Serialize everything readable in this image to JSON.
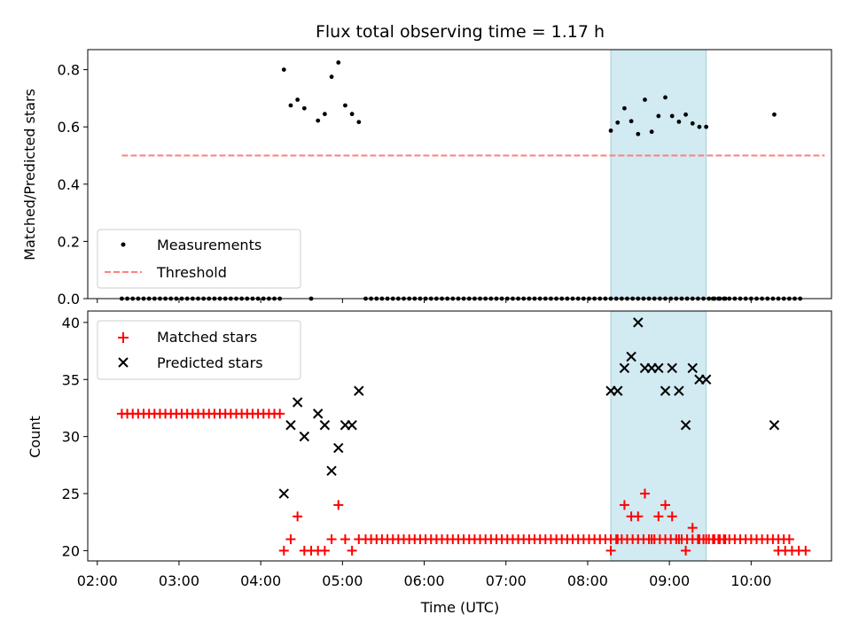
{
  "title": "Flux total observing time = 1.17 h",
  "colors": {
    "measurement": "#000000",
    "threshold": "#ff7f7f",
    "matched": "#ff0000",
    "predicted": "#000000",
    "highlight": "#add8e6"
  },
  "chart_data": [
    {
      "type": "scatter",
      "ylabel": "Matched/Predicted stars",
      "xlabel": "",
      "xlim": [
        "01:53",
        "10:59"
      ],
      "ylim": [
        0,
        0.87
      ],
      "x_ticks": [
        "02:00",
        "03:00",
        "04:00",
        "05:00",
        "06:00",
        "07:00",
        "08:00",
        "09:00",
        "10:00"
      ],
      "y_ticks": [
        "0.0",
        "0.2",
        "0.4",
        "0.6",
        "0.8"
      ],
      "highlight_span": [
        "08:17",
        "09:27"
      ],
      "legend": {
        "placement": "lower-left",
        "entries": [
          "Measurements",
          "Threshold"
        ]
      },
      "threshold": {
        "name": "Threshold",
        "y": 0.5,
        "x_range": [
          "02:18",
          "10:54"
        ]
      },
      "series": [
        {
          "name": "Measurements",
          "zero_points": {
            "groups": [
              {
                "start": "02:18",
                "step_min": 4,
                "count": 30
              },
              {
                "start": "04:37",
                "step_min": 4,
                "count": 1
              },
              {
                "start": "05:17",
                "step_min": 4,
                "count": 67
              },
              {
                "start": "09:32",
                "step_min": 4,
                "count": 17
              }
            ]
          },
          "points": [
            {
              "x": "04:17",
              "y": 0.8
            },
            {
              "x": "04:22",
              "y": 0.675
            },
            {
              "x": "04:27",
              "y": 0.695
            },
            {
              "x": "04:32",
              "y": 0.665
            },
            {
              "x": "04:42",
              "y": 0.622
            },
            {
              "x": "04:47",
              "y": 0.645
            },
            {
              "x": "04:52",
              "y": 0.775
            },
            {
              "x": "04:57",
              "y": 0.825
            },
            {
              "x": "05:02",
              "y": 0.675
            },
            {
              "x": "05:07",
              "y": 0.645
            },
            {
              "x": "05:12",
              "y": 0.617
            },
            {
              "x": "08:17",
              "y": 0.587
            },
            {
              "x": "08:22",
              "y": 0.615
            },
            {
              "x": "08:27",
              "y": 0.665
            },
            {
              "x": "08:32",
              "y": 0.62
            },
            {
              "x": "08:37",
              "y": 0.575
            },
            {
              "x": "08:42",
              "y": 0.695
            },
            {
              "x": "08:47",
              "y": 0.583
            },
            {
              "x": "08:52",
              "y": 0.638
            },
            {
              "x": "08:57",
              "y": 0.703
            },
            {
              "x": "09:02",
              "y": 0.638
            },
            {
              "x": "09:07",
              "y": 0.618
            },
            {
              "x": "09:12",
              "y": 0.643
            },
            {
              "x": "09:17",
              "y": 0.612
            },
            {
              "x": "09:22",
              "y": 0.6
            },
            {
              "x": "09:27",
              "y": 0.6
            },
            {
              "x": "10:17",
              "y": 0.643
            }
          ]
        }
      ]
    },
    {
      "type": "scatter",
      "ylabel": "Count",
      "xlabel": "Time (UTC)",
      "xlim": [
        "01:53",
        "10:59"
      ],
      "ylim": [
        19.1,
        41
      ],
      "x_ticks": [
        "02:00",
        "03:00",
        "04:00",
        "05:00",
        "06:00",
        "07:00",
        "08:00",
        "09:00",
        "10:00"
      ],
      "y_ticks": [
        "20",
        "25",
        "30",
        "35",
        "40"
      ],
      "highlight_span": [
        "08:17",
        "09:27"
      ],
      "legend": {
        "placement": "upper-left",
        "entries": [
          "Matched stars",
          "Predicted stars"
        ]
      },
      "series": [
        {
          "name": "Matched stars",
          "regular_groups": [
            {
              "start": "02:18",
              "step_min": 4,
              "count": 30,
              "y": 32
            },
            {
              "start": "05:17",
              "step_min": 4,
              "count": 67,
              "y": 21
            },
            {
              "start": "09:32",
              "step_min": 4,
              "count": 15,
              "y": 21
            },
            {
              "start": "10:20",
              "step_min": 5,
              "count": 5,
              "y": 20
            }
          ],
          "points": [
            {
              "x": "04:17",
              "y": 20
            },
            {
              "x": "04:22",
              "y": 21
            },
            {
              "x": "04:27",
              "y": 23
            },
            {
              "x": "04:32",
              "y": 20
            },
            {
              "x": "04:37",
              "y": 20
            },
            {
              "x": "04:42",
              "y": 20
            },
            {
              "x": "04:47",
              "y": 20
            },
            {
              "x": "04:52",
              "y": 21
            },
            {
              "x": "04:57",
              "y": 24
            },
            {
              "x": "05:02",
              "y": 21
            },
            {
              "x": "05:07",
              "y": 20
            },
            {
              "x": "05:12",
              "y": 21
            },
            {
              "x": "08:17",
              "y": 20
            },
            {
              "x": "08:22",
              "y": 21
            },
            {
              "x": "08:27",
              "y": 24
            },
            {
              "x": "08:32",
              "y": 23
            },
            {
              "x": "08:37",
              "y": 23
            },
            {
              "x": "08:42",
              "y": 25
            },
            {
              "x": "08:47",
              "y": 21
            },
            {
              "x": "08:52",
              "y": 23
            },
            {
              "x": "08:57",
              "y": 24
            },
            {
              "x": "09:02",
              "y": 23
            },
            {
              "x": "09:07",
              "y": 21
            },
            {
              "x": "09:12",
              "y": 20
            },
            {
              "x": "09:17",
              "y": 22
            },
            {
              "x": "09:22",
              "y": 21
            },
            {
              "x": "09:27",
              "y": 21
            }
          ]
        },
        {
          "name": "Predicted stars",
          "points": [
            {
              "x": "04:17",
              "y": 25
            },
            {
              "x": "04:22",
              "y": 31
            },
            {
              "x": "04:27",
              "y": 33
            },
            {
              "x": "04:32",
              "y": 30
            },
            {
              "x": "04:42",
              "y": 32
            },
            {
              "x": "04:47",
              "y": 31
            },
            {
              "x": "04:52",
              "y": 27
            },
            {
              "x": "04:57",
              "y": 29
            },
            {
              "x": "05:02",
              "y": 31
            },
            {
              "x": "05:07",
              "y": 31
            },
            {
              "x": "05:12",
              "y": 34
            },
            {
              "x": "08:17",
              "y": 34
            },
            {
              "x": "08:22",
              "y": 34
            },
            {
              "x": "08:27",
              "y": 36
            },
            {
              "x": "08:32",
              "y": 37
            },
            {
              "x": "08:37",
              "y": 40
            },
            {
              "x": "08:42",
              "y": 36
            },
            {
              "x": "08:47",
              "y": 36
            },
            {
              "x": "08:52",
              "y": 36
            },
            {
              "x": "08:57",
              "y": 34
            },
            {
              "x": "09:02",
              "y": 36
            },
            {
              "x": "09:07",
              "y": 34
            },
            {
              "x": "09:12",
              "y": 31
            },
            {
              "x": "09:17",
              "y": 36
            },
            {
              "x": "09:22",
              "y": 35
            },
            {
              "x": "09:27",
              "y": 35
            },
            {
              "x": "10:17",
              "y": 31
            }
          ]
        }
      ]
    }
  ]
}
